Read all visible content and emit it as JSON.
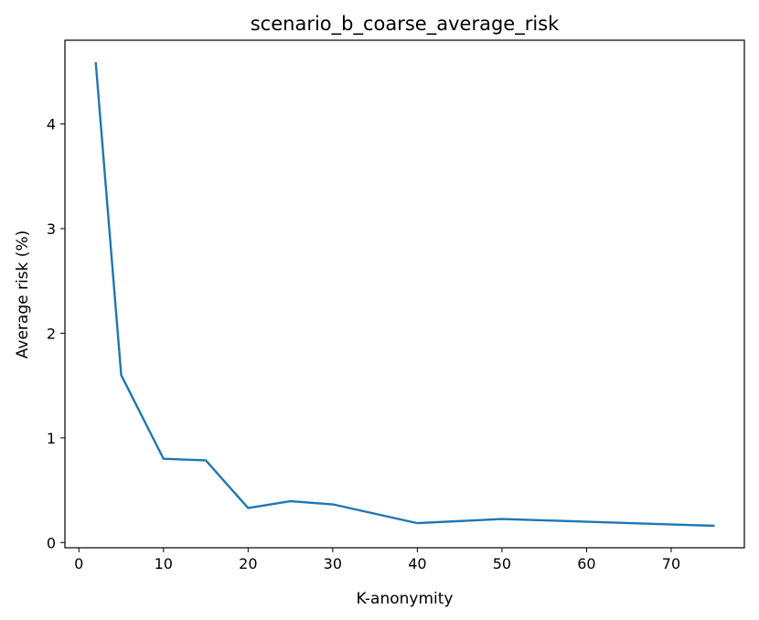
{
  "chart_data": {
    "type": "line",
    "title": "scenario_b_coarse_average_risk",
    "xlabel": "K-anonymity",
    "ylabel": "Average risk (%)",
    "xlim": [
      -1.65,
      78.65
    ],
    "ylim": [
      -0.05,
      4.8
    ],
    "xticks": [
      0,
      10,
      20,
      30,
      40,
      50,
      60,
      70
    ],
    "yticks": [
      0,
      1,
      2,
      3,
      4
    ],
    "grid": false,
    "legend": "none",
    "series": [
      {
        "color": "#1f77b4",
        "x": [
          2,
          5,
          10,
          15,
          20,
          25,
          30,
          40,
          50,
          75
        ],
        "y": [
          4.58,
          1.6,
          0.8,
          0.785,
          0.33,
          0.395,
          0.365,
          0.185,
          0.225,
          0.16
        ]
      }
    ]
  }
}
